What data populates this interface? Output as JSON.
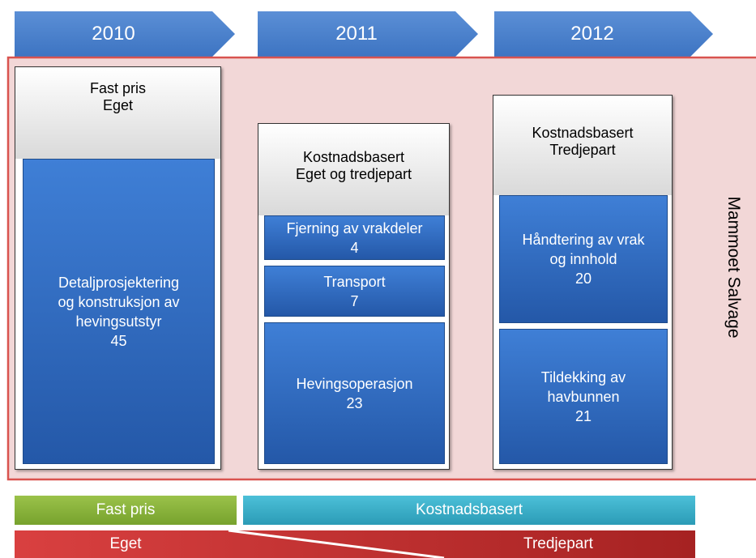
{
  "timeline": [
    {
      "year": "2010"
    },
    {
      "year": "2011"
    },
    {
      "year": "2012"
    }
  ],
  "columns": [
    {
      "header": [
        "Fast pris",
        "Eget"
      ],
      "blocks": [
        {
          "lines": [
            "Detaljprosjektering",
            "og konstruksjon av",
            "hevingsutstyr"
          ],
          "value": 45
        }
      ]
    },
    {
      "header": [
        "Kostnadsbasert",
        "Eget og tredjepart"
      ],
      "blocks": [
        {
          "lines": [
            "Fjerning av vrakdeler"
          ],
          "value": 4
        },
        {
          "lines": [
            "Transport"
          ],
          "value": 7
        },
        {
          "lines": [
            "Hevingsoperasjon"
          ],
          "value": 23
        }
      ]
    },
    {
      "header": [
        "Kostnadsbasert",
        "Tredjepart"
      ],
      "blocks": [
        {
          "lines": [
            "Håndtering av vrak",
            "og innhold"
          ],
          "value": 20
        },
        {
          "lines": [
            "Tildekking av",
            "havbunnen"
          ],
          "value": 21
        }
      ]
    }
  ],
  "side_label": "Mammoet Salvage",
  "legend": {
    "pricing": [
      "Fast pris",
      "Kostnadsbasert"
    ],
    "party": [
      "Eget",
      "Tredjepart"
    ]
  }
}
